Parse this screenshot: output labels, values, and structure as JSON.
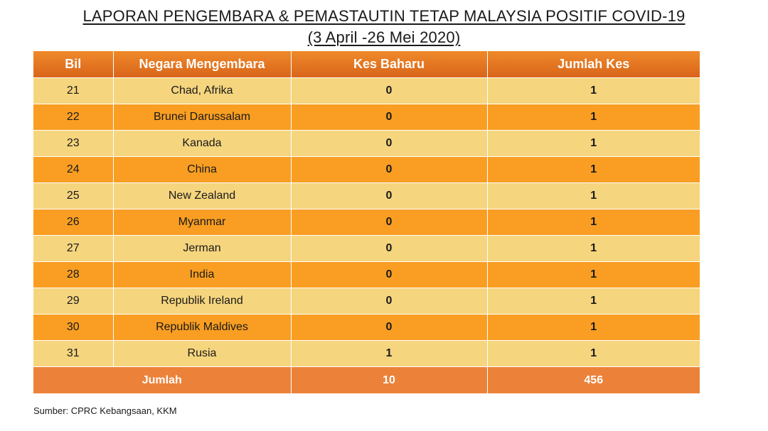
{
  "title": {
    "line1": "LAPORAN PENGEMBARA & PEMASTAUTIN TETAP MALAYSIA POSITIF COVID-19",
    "line2": "(3 April -26 Mei 2020)"
  },
  "table": {
    "headers": [
      "Bil",
      "Negara Mengembara",
      "Kes Baharu",
      "Jumlah Kes"
    ],
    "rows": [
      {
        "bil": "21",
        "negara": "Chad, Afrika",
        "kes_baharu": "0",
        "jumlah_kes": "1"
      },
      {
        "bil": "22",
        "negara": "Brunei Darussalam",
        "kes_baharu": "0",
        "jumlah_kes": "1"
      },
      {
        "bil": "23",
        "negara": "Kanada",
        "kes_baharu": "0",
        "jumlah_kes": "1"
      },
      {
        "bil": "24",
        "negara": "China",
        "kes_baharu": "0",
        "jumlah_kes": "1"
      },
      {
        "bil": "25",
        "negara": "New Zealand",
        "kes_baharu": "0",
        "jumlah_kes": "1"
      },
      {
        "bil": "26",
        "negara": "Myanmar",
        "kes_baharu": "0",
        "jumlah_kes": "1"
      },
      {
        "bil": "27",
        "negara": "Jerman",
        "kes_baharu": "0",
        "jumlah_kes": "1"
      },
      {
        "bil": "28",
        "negara": "India",
        "kes_baharu": "0",
        "jumlah_kes": "1"
      },
      {
        "bil": "29",
        "negara": "Republik Ireland",
        "kes_baharu": "0",
        "jumlah_kes": "1"
      },
      {
        "bil": "30",
        "negara": "Republik Maldives",
        "kes_baharu": "0",
        "jumlah_kes": "1"
      },
      {
        "bil": "31",
        "negara": "Rusia",
        "kes_baharu": "1",
        "jumlah_kes": "1"
      }
    ],
    "total": {
      "label": "Jumlah",
      "kes_baharu": "10",
      "jumlah_kes": "456"
    }
  },
  "source": "Sumber: CPRC Kebangsaan, KKM",
  "colors": {
    "header": "#e4762a",
    "row_light": "#f5d57e",
    "row_dark": "#f99e22",
    "total_row": "#ec823a"
  }
}
